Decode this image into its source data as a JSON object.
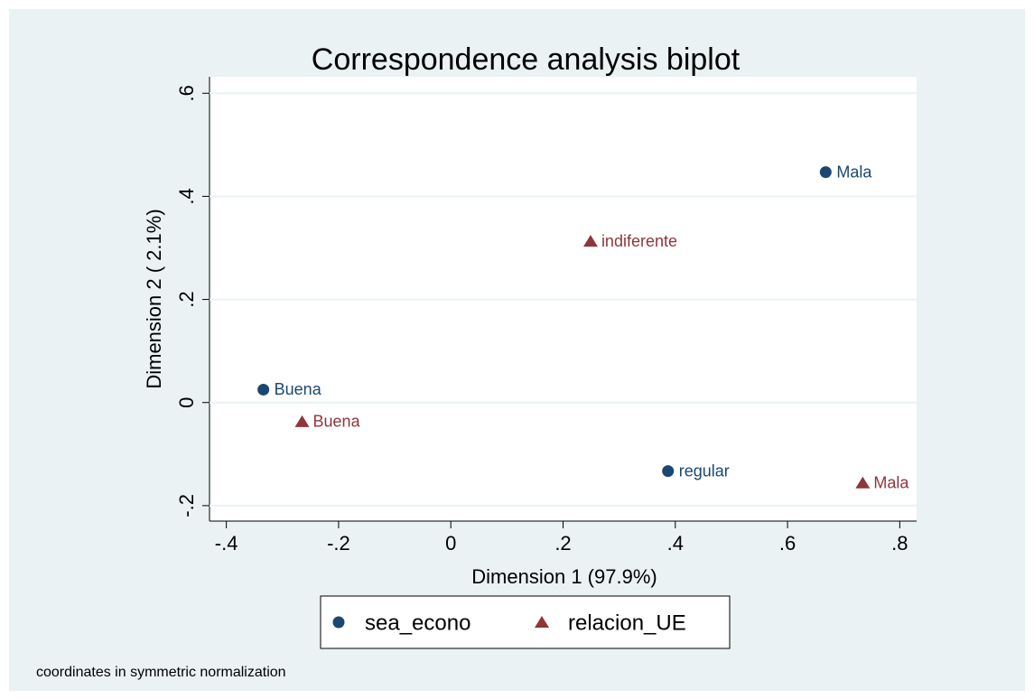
{
  "chart_data": {
    "type": "scatter",
    "title": "Correspondence analysis biplot",
    "x_label": "Dimension 1 (97.9%)",
    "y_label": "Dimension 2 ( 2.1%)",
    "note": "coordinates in symmetric normalization",
    "xlim": [
      -0.43,
      0.83
    ],
    "ylim": [
      -0.23,
      0.632
    ],
    "xticks": [
      {
        "value": -0.4,
        "label": "-.4"
      },
      {
        "value": -0.2,
        "label": "-.2"
      },
      0,
      {
        "value": 0.2,
        "label": ".2"
      },
      {
        "value": 0.4,
        "label": ".4"
      },
      {
        "value": 0.6,
        "label": ".6"
      },
      {
        "value": 0.8,
        "label": ".8"
      }
    ],
    "yticks": [
      {
        "value": -0.2,
        "label": "-.2"
      },
      0,
      {
        "value": 0.2,
        "label": ".2"
      },
      {
        "value": 0.4,
        "label": ".4"
      },
      {
        "value": 0.6,
        "label": ".6"
      }
    ],
    "grid": true,
    "series": [
      {
        "name": "sea_econo",
        "color": "#1a476f",
        "marker": "circle",
        "point_labels": [
          "Mala",
          "Buena",
          "regular"
        ],
        "x": [
          0.668,
          -0.334,
          0.387
        ],
        "values": [
          0.447,
          0.025,
          -0.133
        ]
      },
      {
        "name": "relacion_UE",
        "color": "#90353b",
        "marker": "triangle",
        "point_labels": [
          "indiferente",
          "Buena",
          "Mala"
        ],
        "x": [
          0.249,
          -0.265,
          0.734
        ],
        "values": [
          0.313,
          -0.037,
          -0.156
        ]
      }
    ]
  }
}
